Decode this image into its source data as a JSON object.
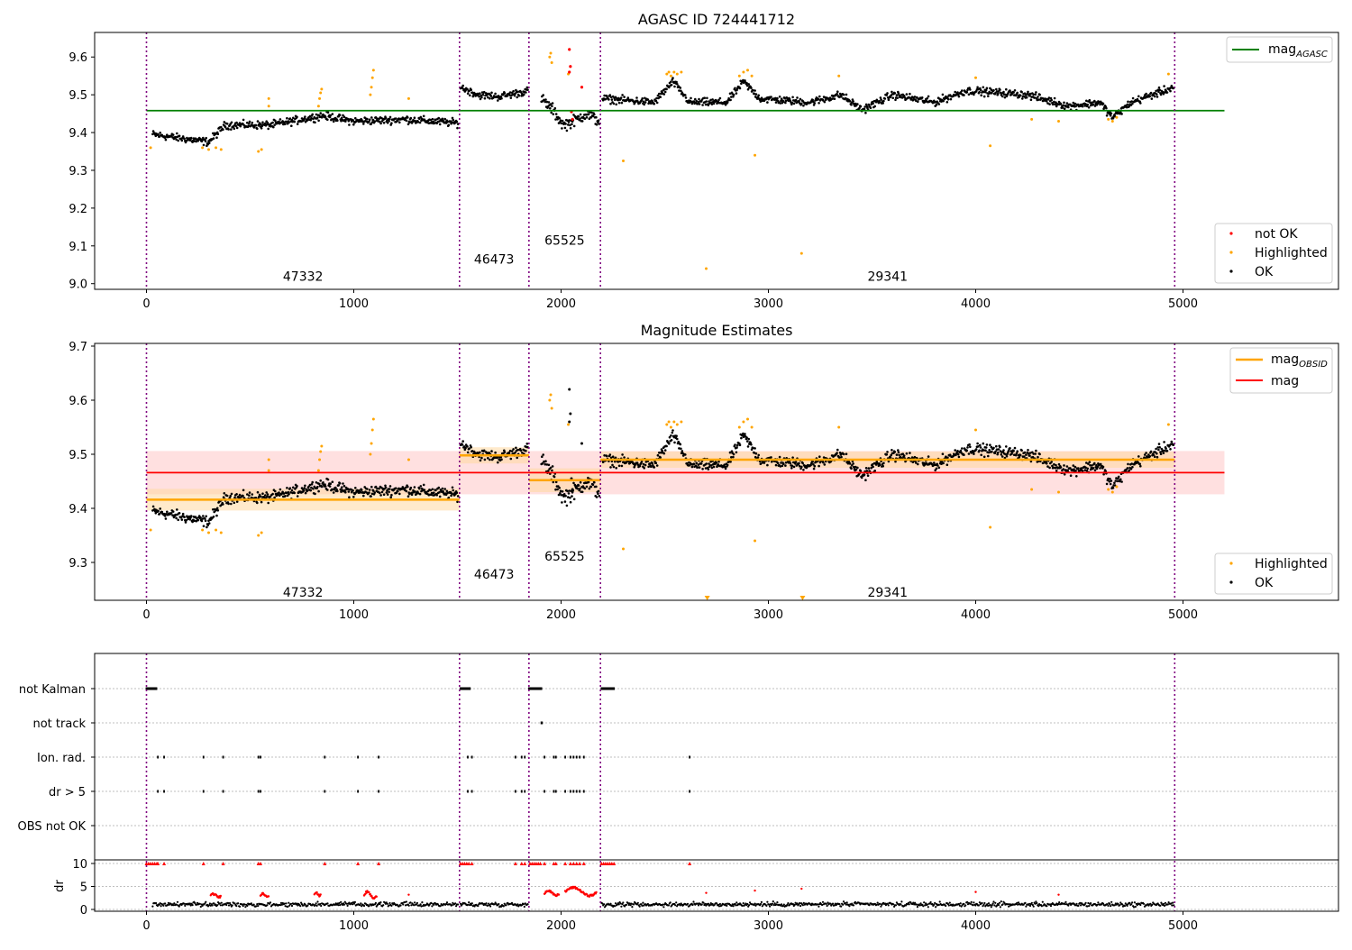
{
  "chart_data": [
    {
      "type": "scatter",
      "title": "AGASC ID 724441712",
      "xlim": [
        -250,
        5750
      ],
      "ylim": [
        8.985,
        9.665
      ],
      "x_ticks": [
        0,
        1000,
        2000,
        3000,
        4000,
        5000
      ],
      "y_ticks": [
        9.0,
        9.1,
        9.2,
        9.3,
        9.4,
        9.5,
        9.6
      ],
      "y_tick_labels": [
        "9.0",
        "9.1",
        "9.2",
        "9.3",
        "9.4",
        "9.5",
        "9.6"
      ],
      "x_tick_labels": [
        "0",
        "1000",
        "2000",
        "3000",
        "4000",
        "5000"
      ],
      "obs_boundaries": [
        0,
        1510,
        1845,
        2190,
        4960
      ],
      "obs_labels": [
        {
          "text": "47332",
          "x": 755,
          "y": 9.02
        },
        {
          "text": "46473",
          "x": 1677,
          "y": 9.065
        },
        {
          "text": "65525",
          "x": 2017,
          "y": 9.115
        },
        {
          "text": "29341",
          "x": 3575,
          "y": 9.02
        }
      ],
      "reference_lines": [
        {
          "name": "mag_AGASC",
          "label_main": "mag",
          "label_sub": "AGASC",
          "value": 9.458,
          "x_range": [
            0,
            5200
          ],
          "color": "#008000"
        }
      ],
      "series": [
        {
          "name": "not OK",
          "color": "#ff0000"
        },
        {
          "name": "Highlighted",
          "color": "#ffa500"
        },
        {
          "name": "OK",
          "color": "#000000"
        }
      ],
      "highlight_points": [
        [
          20,
          9.36
        ],
        [
          270,
          9.36
        ],
        [
          300,
          9.355
        ],
        [
          335,
          9.36
        ],
        [
          360,
          9.355
        ],
        [
          540,
          9.35
        ],
        [
          555,
          9.355
        ],
        [
          590,
          9.47
        ],
        [
          590,
          9.49
        ],
        [
          830,
          9.47
        ],
        [
          835,
          9.49
        ],
        [
          840,
          9.505
        ],
        [
          845,
          9.515
        ],
        [
          1080,
          9.5
        ],
        [
          1085,
          9.52
        ],
        [
          1090,
          9.545
        ],
        [
          1095,
          9.565
        ],
        [
          1265,
          9.49
        ],
        [
          1945,
          9.6
        ],
        [
          1950,
          9.61
        ],
        [
          1955,
          9.585
        ],
        [
          2035,
          9.555
        ],
        [
          2300,
          9.325
        ],
        [
          2510,
          9.555
        ],
        [
          2520,
          9.56
        ],
        [
          2530,
          9.55
        ],
        [
          2545,
          9.56
        ],
        [
          2560,
          9.555
        ],
        [
          2580,
          9.56
        ],
        [
          2700,
          9.04
        ],
        [
          2860,
          9.55
        ],
        [
          2880,
          9.56
        ],
        [
          2900,
          9.565
        ],
        [
          2920,
          9.55
        ],
        [
          2935,
          9.34
        ],
        [
          3160,
          9.08
        ],
        [
          3340,
          9.55
        ],
        [
          4000,
          9.545
        ],
        [
          4070,
          9.365
        ],
        [
          4270,
          9.435
        ],
        [
          4400,
          9.43
        ],
        [
          4640,
          9.435
        ],
        [
          4660,
          9.43
        ],
        [
          4680,
          9.44
        ],
        [
          4930,
          9.555
        ]
      ],
      "not_ok_points": [
        [
          2040,
          9.62
        ],
        [
          2045,
          9.575
        ],
        [
          2040,
          9.56
        ],
        [
          2100,
          9.52
        ],
        [
          2050,
          9.455
        ],
        [
          2055,
          9.435
        ]
      ],
      "ok_segments": [
        {
          "x0": 30,
          "x1": 1505,
          "levels": [
            [
              30,
              9.395
            ],
            [
              300,
              9.375
            ],
            [
              380,
              9.42
            ],
            [
              600,
              9.42
            ],
            [
              850,
              9.445
            ],
            [
              1000,
              9.43
            ],
            [
              1250,
              9.435
            ],
            [
              1505,
              9.425
            ]
          ],
          "noise": 0.012
        },
        {
          "x0": 1515,
          "x1": 1840,
          "levels": [
            [
              1515,
              9.52
            ],
            [
              1600,
              9.5
            ],
            [
              1700,
              9.495
            ],
            [
              1840,
              9.51
            ]
          ],
          "noise": 0.012
        },
        {
          "x0": 1905,
          "x1": 2185,
          "levels": [
            [
              1905,
              9.49
            ],
            [
              1960,
              9.46
            ],
            [
              2010,
              9.42
            ],
            [
              2060,
              9.43
            ],
            [
              2120,
              9.45
            ],
            [
              2185,
              9.43
            ]
          ],
          "noise": 0.018
        },
        {
          "x0": 2200,
          "x1": 4955,
          "levels": [
            [
              2200,
              9.49
            ],
            [
              2450,
              9.48
            ],
            [
              2540,
              9.535
            ],
            [
              2620,
              9.48
            ],
            [
              2800,
              9.48
            ],
            [
              2880,
              9.535
            ],
            [
              2960,
              9.49
            ],
            [
              3200,
              9.48
            ],
            [
              3350,
              9.5
            ],
            [
              3450,
              9.46
            ],
            [
              3600,
              9.5
            ],
            [
              3800,
              9.48
            ],
            [
              3950,
              9.51
            ],
            [
              4000,
              9.51
            ],
            [
              4250,
              9.5
            ],
            [
              4450,
              9.47
            ],
            [
              4600,
              9.48
            ],
            [
              4660,
              9.44
            ],
            [
              4750,
              9.48
            ],
            [
              4955,
              9.52
            ]
          ],
          "noise": 0.012
        }
      ]
    },
    {
      "type": "scatter",
      "title": "Magnitude Estimates",
      "xlim": [
        -250,
        5750
      ],
      "ylim": [
        9.23,
        9.705
      ],
      "x_ticks": [
        0,
        1000,
        2000,
        3000,
        4000,
        5000
      ],
      "y_ticks": [
        9.3,
        9.4,
        9.5,
        9.6,
        9.7
      ],
      "y_tick_labels": [
        "9.3",
        "9.4",
        "9.5",
        "9.6",
        "9.7"
      ],
      "x_tick_labels": [
        "0",
        "1000",
        "2000",
        "3000",
        "4000",
        "5000"
      ],
      "obs_boundaries": [
        0,
        1510,
        1845,
        2190,
        4960
      ],
      "obs_labels": [
        {
          "text": "47332",
          "x": 755,
          "y": 9.245
        },
        {
          "text": "46473",
          "x": 1677,
          "y": 9.278
        },
        {
          "text": "65525",
          "x": 2017,
          "y": 9.312
        },
        {
          "text": "29341",
          "x": 3575,
          "y": 9.245
        }
      ],
      "mag": {
        "value": 9.466,
        "band": [
          9.426,
          9.506
        ],
        "x_range": [
          0,
          5200
        ],
        "color": "#ff0000"
      },
      "mag_obsid": [
        {
          "x_range": [
            0,
            1510
          ],
          "value": 9.416,
          "band": [
            9.396,
            9.436
          ]
        },
        {
          "x_range": [
            1510,
            1845
          ],
          "value": 9.498,
          "band": [
            9.483,
            9.513
          ]
        },
        {
          "x_range": [
            1845,
            2190
          ],
          "value": 9.452,
          "band": [
            9.43,
            9.474
          ]
        },
        {
          "x_range": [
            2190,
            4960
          ],
          "value": 9.49,
          "band": [
            9.475,
            9.505
          ]
        }
      ],
      "legend_lines": [
        {
          "label_main": "mag",
          "label_sub": "OBSID",
          "color": "#ffa500"
        },
        {
          "label_main": "mag",
          "label_sub": "",
          "color": "#ff0000"
        }
      ],
      "series": [
        {
          "name": "Highlighted",
          "color": "#ffa500"
        },
        {
          "name": "OK",
          "color": "#000000"
        }
      ],
      "offscale_markers": [
        2705,
        3165
      ]
    },
    {
      "type": "scatter",
      "xlim": [
        -250,
        5750
      ],
      "x_ticks": [
        0,
        1000,
        2000,
        3000,
        4000,
        5000
      ],
      "x_tick_labels": [
        "0",
        "1000",
        "2000",
        "3000",
        "4000",
        "5000"
      ],
      "obs_boundaries": [
        0,
        1510,
        1845,
        2190,
        4960
      ],
      "flag_rows": [
        "not Kalman",
        "not track",
        "Ion. rad.",
        "dr > 5",
        "OBS not OK"
      ],
      "flag_points": {
        "not Kalman": [
          [
            0,
            50
          ],
          [
            1515,
            1560
          ],
          [
            1845,
            1905
          ],
          [
            2195,
            2255
          ]
        ],
        "not track": [
          [
            1905,
            1910
          ]
        ],
        "Ion. rad.": [
          55,
          85,
          275,
          370,
          540,
          550,
          860,
          1020,
          1120,
          1550,
          1570,
          1780,
          1810,
          1825,
          1920,
          1965,
          1975,
          2020,
          2045,
          2060,
          2075,
          2090,
          2110,
          2620
        ],
        "dr > 5": [
          55,
          85,
          275,
          370,
          540,
          550,
          860,
          1020,
          1120,
          1550,
          1570,
          1780,
          1810,
          1825,
          1920,
          1965,
          1975,
          2020,
          2045,
          2060,
          2075,
          2090,
          2110,
          2620
        ],
        "OBS not OK": []
      },
      "dr": {
        "ylabel": "dr",
        "y_ticks": [
          0,
          5,
          10
        ],
        "y_tick_labels": [
          "0",
          "5",
          "10"
        ],
        "clip_value": 10,
        "clipped_x": [
          0,
          10,
          20,
          30,
          40,
          50,
          55,
          85,
          275,
          370,
          540,
          550,
          860,
          1020,
          1120,
          1515,
          1525,
          1535,
          1545,
          1555,
          1570,
          1780,
          1810,
          1825,
          1850,
          1860,
          1870,
          1880,
          1890,
          1900,
          1920,
          1965,
          1975,
          2020,
          2045,
          2060,
          2075,
          2090,
          2110,
          2195,
          2205,
          2215,
          2225,
          2235,
          2245,
          2255,
          2620
        ],
        "red_ranges": [
          [
            310,
            360,
            2.5,
            3.3
          ],
          [
            550,
            590,
            2.7,
            3.4
          ],
          [
            810,
            840,
            2.8,
            3.6
          ],
          [
            1050,
            1110,
            2.2,
            4.0
          ],
          [
            1920,
            1990,
            2.8,
            4.2
          ],
          [
            2020,
            2170,
            2.8,
            5.0
          ]
        ],
        "red_singles": [
          [
            1265,
            3.2
          ],
          [
            2700,
            3.6
          ],
          [
            2935,
            4.1
          ],
          [
            3160,
            4.5
          ],
          [
            4000,
            3.8
          ],
          [
            4400,
            3.2
          ]
        ],
        "black_segments": [
          [
            30,
            1505
          ],
          [
            1515,
            1840
          ],
          [
            2195,
            4955
          ]
        ]
      }
    }
  ]
}
